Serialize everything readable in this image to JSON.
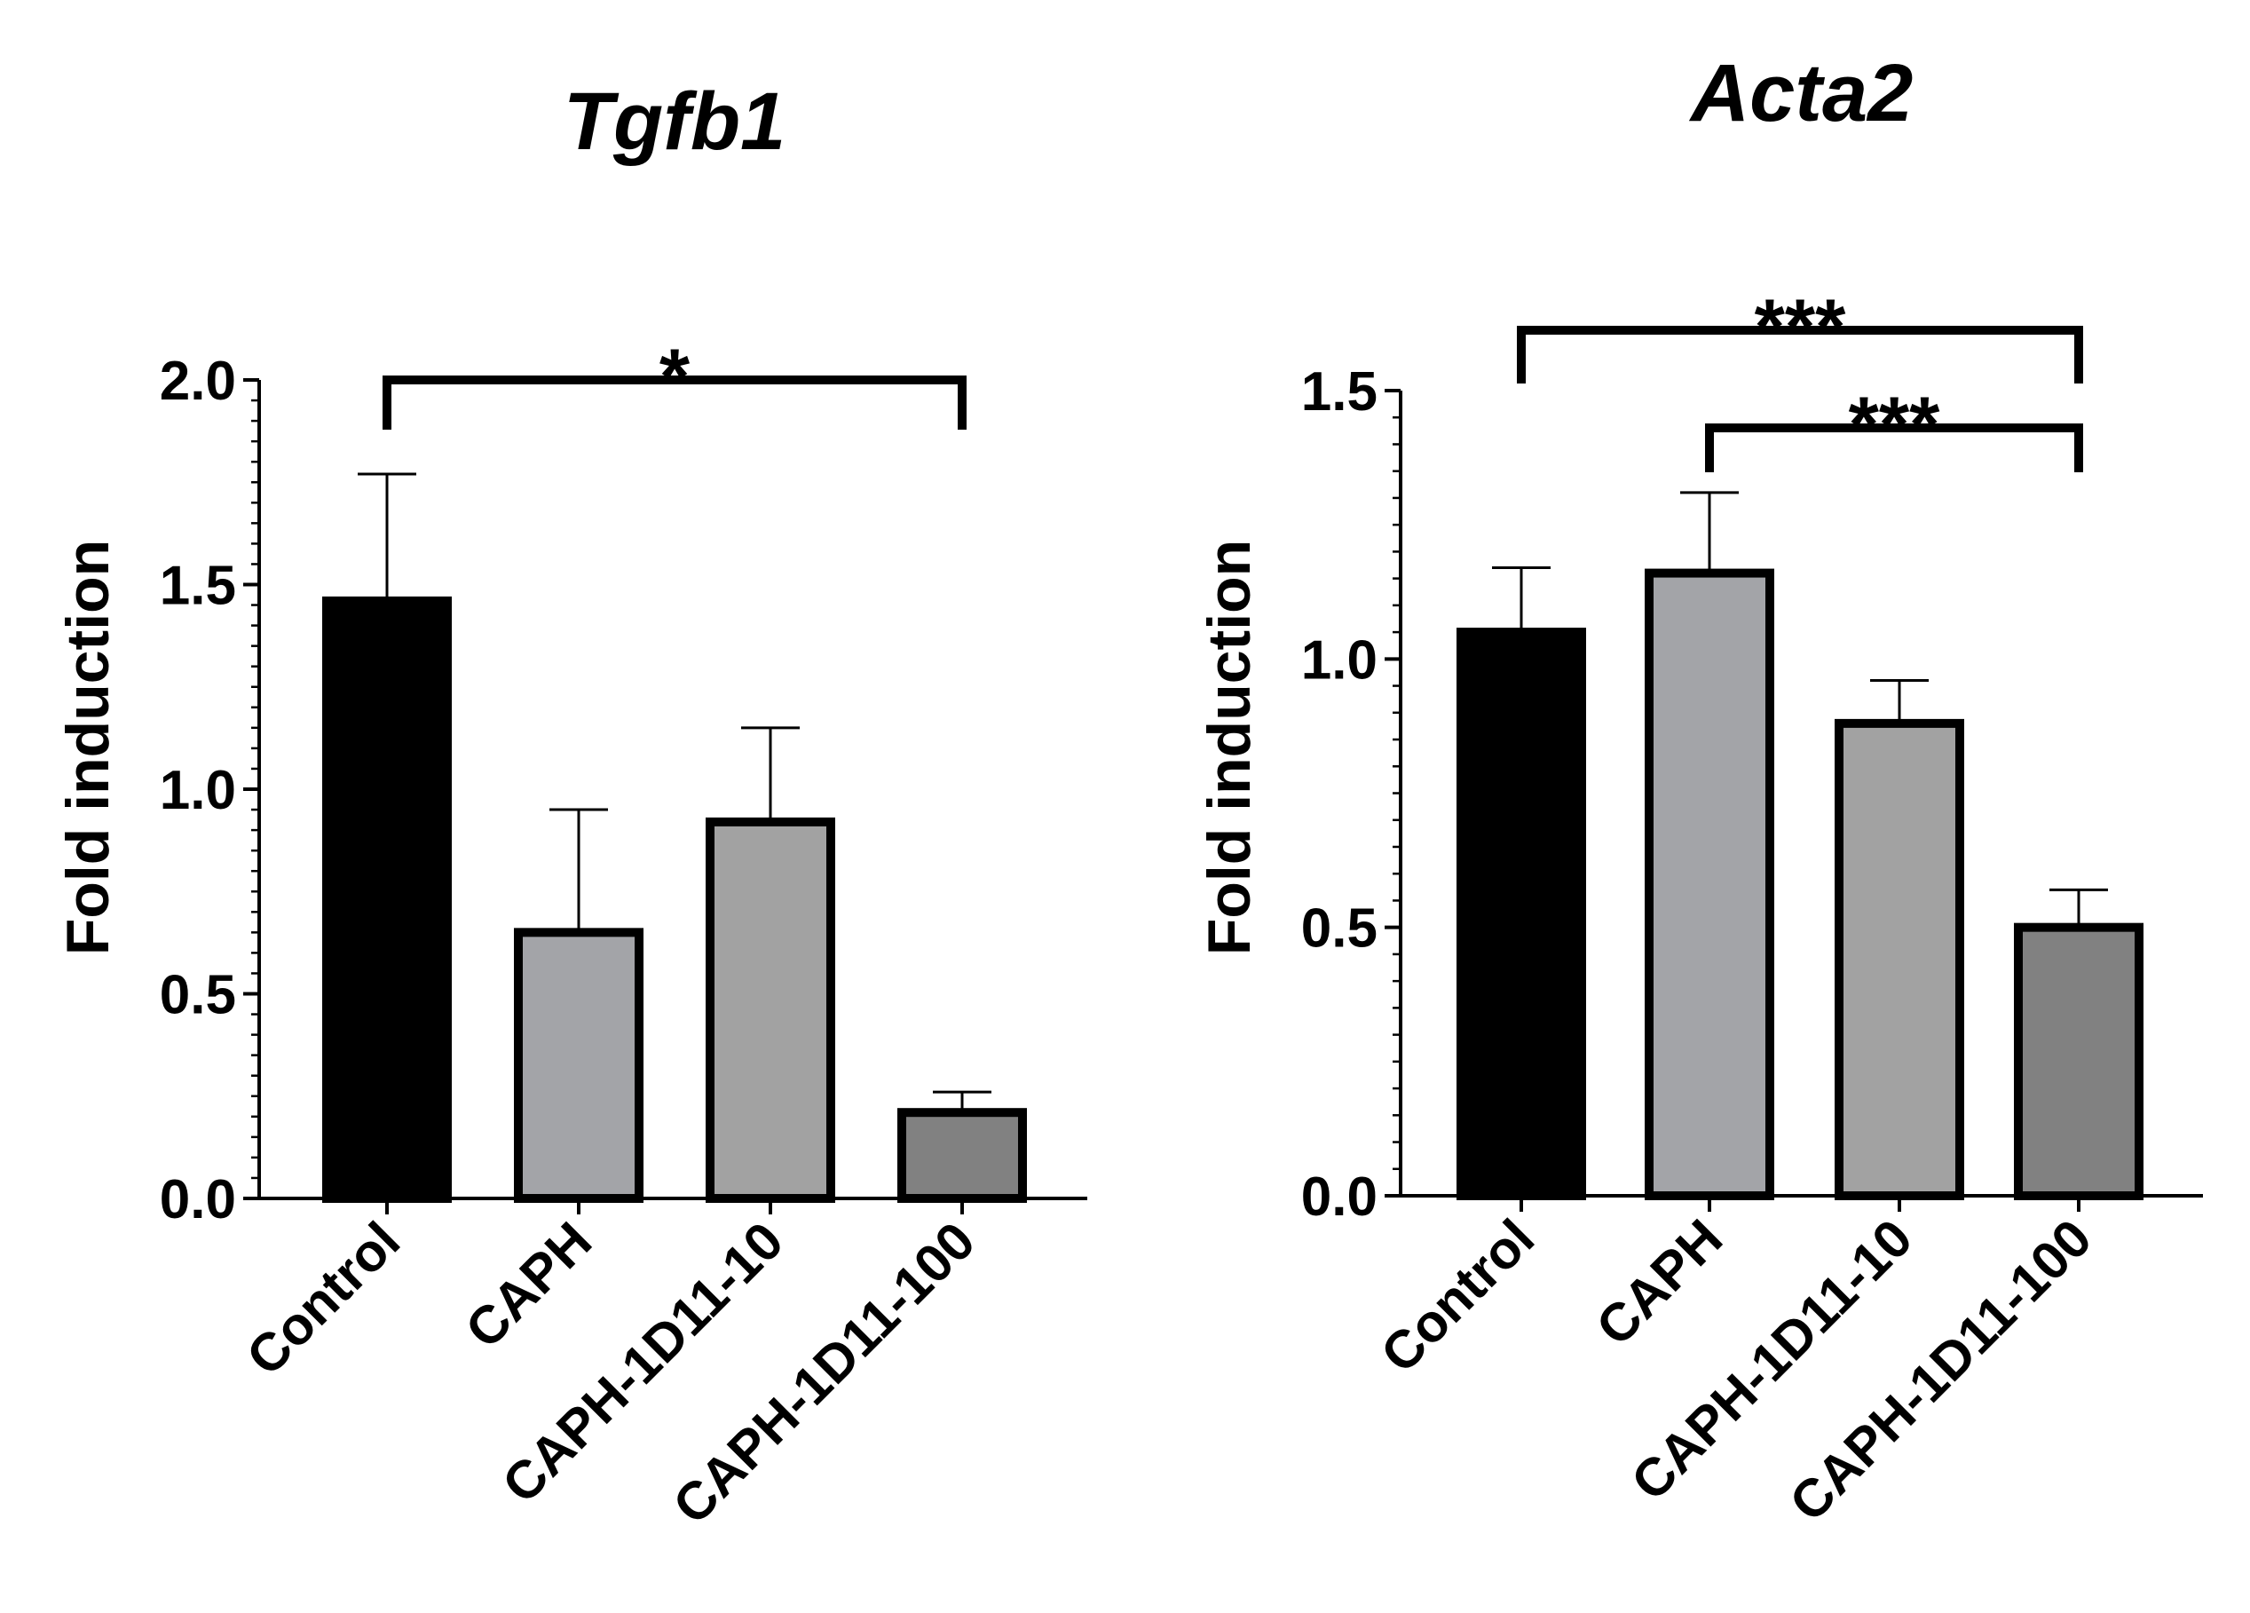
{
  "chart_data": [
    {
      "type": "bar",
      "title": "Tgfb1",
      "xlabel": "",
      "ylabel": "Fold induction",
      "ylim": [
        0,
        2.0
      ],
      "yticks": [
        "0.0",
        "0.5",
        "1.0",
        "1.5",
        "2.0"
      ],
      "categories": [
        "Control",
        "CAPH",
        "CAPH-1D11-10",
        "CAPH-1D11-100"
      ],
      "values": [
        1.46,
        0.65,
        0.92,
        0.21
      ],
      "errors": [
        0.31,
        0.3,
        0.23,
        0.05
      ],
      "colors": [
        "#000000",
        "#a3a4a8",
        "#a2a2a2",
        "#818181"
      ],
      "significance": [
        {
          "from": 0,
          "to": 3,
          "label": "*"
        }
      ]
    },
    {
      "type": "bar",
      "title": "Acta2",
      "xlabel": "",
      "ylabel": "Fold induction",
      "ylim": [
        0,
        1.5
      ],
      "yticks": [
        "0.0",
        "0.5",
        "1.0",
        "1.5"
      ],
      "categories": [
        "Control",
        "CAPH",
        "CAPH-1D11-10",
        "CAPH-1D11-100"
      ],
      "values": [
        1.05,
        1.16,
        0.88,
        0.5
      ],
      "errors": [
        0.12,
        0.15,
        0.08,
        0.07
      ],
      "colors": [
        "#000000",
        "#a3a4a8",
        "#a2a2a2",
        "#818181"
      ],
      "significance": [
        {
          "from": 0,
          "to": 3,
          "label": "***"
        },
        {
          "from": 1,
          "to": 3,
          "label": "***"
        }
      ]
    }
  ]
}
